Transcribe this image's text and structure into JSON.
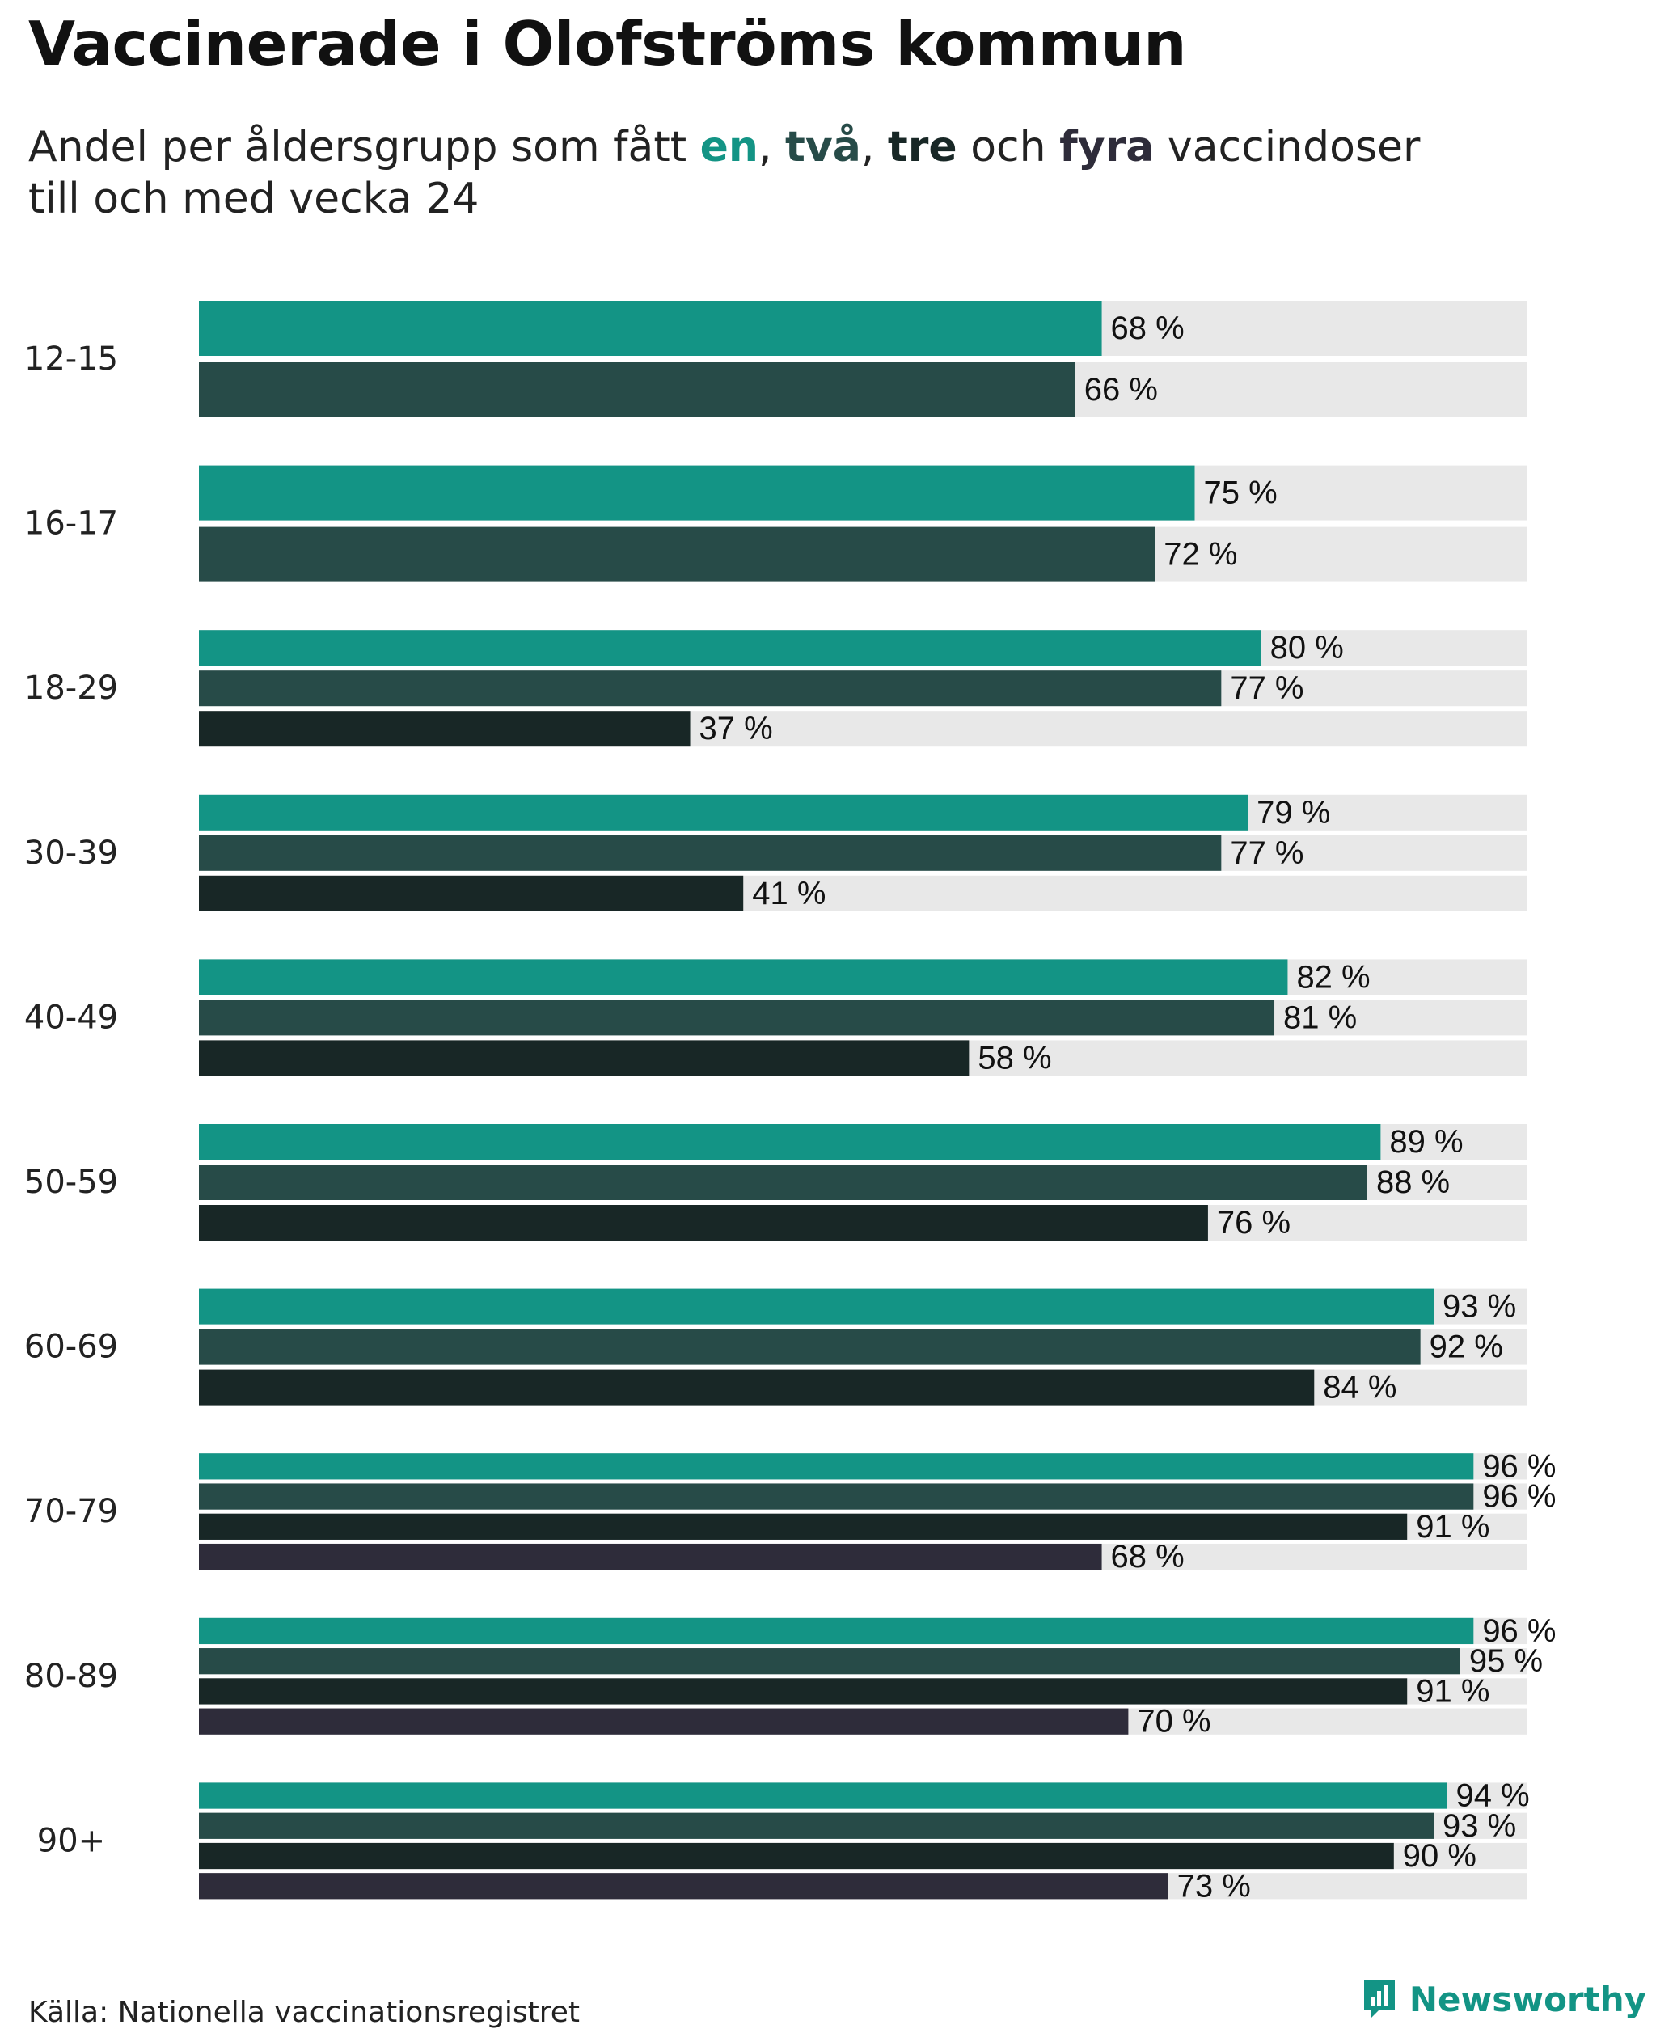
{
  "title": "Vaccinerade i Olofströms kommun",
  "subtitle": {
    "prefix": "Andel per åldersgrupp som fått ",
    "dose1": "en",
    "sep1": ", ",
    "dose2": "två",
    "sep2": ", ",
    "dose3": "tre",
    "sep3": " och ",
    "dose4": "fyra",
    "suffix": " vaccindoser",
    "line2": "till och med vecka 24"
  },
  "colors": {
    "dose1": "#139485",
    "dose2": "#274b48",
    "dose3": "#182726",
    "dose4": "#2e2c3a",
    "track": "#e8e8e8"
  },
  "source": "Källa: Nationella vaccinationsregistret",
  "brand": "Newsworthy",
  "chart_data": {
    "type": "bar",
    "orientation": "horizontal",
    "xlim": [
      0,
      100
    ],
    "value_suffix": " %",
    "categories": [
      "12-15",
      "16-17",
      "18-29",
      "30-39",
      "40-49",
      "50-59",
      "60-69",
      "70-79",
      "80-89",
      "90+"
    ],
    "series": [
      {
        "key": "dose1",
        "values": [
          68,
          75,
          80,
          79,
          82,
          89,
          93,
          96,
          96,
          94
        ]
      },
      {
        "key": "dose2",
        "values": [
          66,
          72,
          77,
          77,
          81,
          88,
          92,
          96,
          95,
          93
        ]
      },
      {
        "key": "dose3",
        "values": [
          null,
          null,
          37,
          41,
          58,
          76,
          84,
          91,
          91,
          90
        ]
      },
      {
        "key": "dose4",
        "values": [
          null,
          null,
          null,
          null,
          null,
          null,
          null,
          68,
          70,
          73
        ]
      }
    ]
  }
}
